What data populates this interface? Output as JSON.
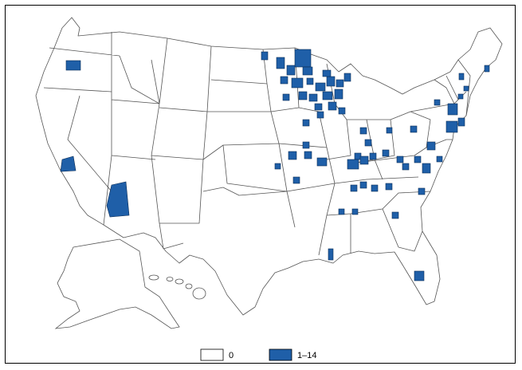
{
  "legend": {
    "items": [
      {
        "label": "0",
        "color": "#ffffff"
      },
      {
        "label": "1–14",
        "color": "#1f5fa8"
      }
    ]
  },
  "colors": {
    "state_fill": "#ffffff",
    "state_stroke": "#555555",
    "county_fill": "#1f5fa8",
    "county_stroke": "#0b2c55",
    "frame": "#000000"
  }
}
